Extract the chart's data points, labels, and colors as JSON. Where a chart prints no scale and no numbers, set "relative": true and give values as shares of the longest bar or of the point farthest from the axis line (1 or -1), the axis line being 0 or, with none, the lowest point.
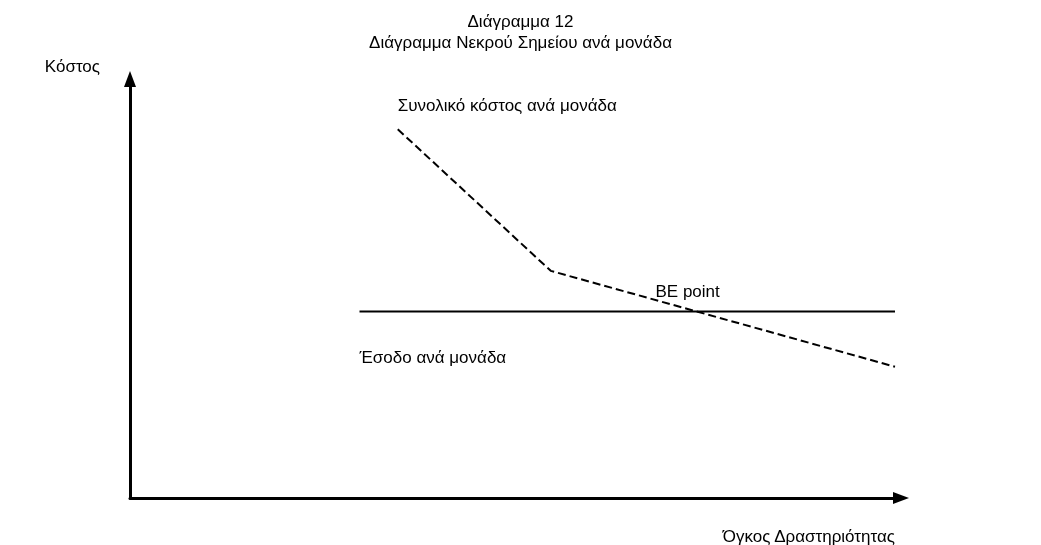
{
  "chart_data": {
    "type": "line",
    "title": "Διάγραμμα 12",
    "subtitle": "Διάγραμμα Νεκρού Σημείου ανά μονάδα",
    "xlabel": "Όγκος Δραστηριότητας",
    "ylabel": "Κόστος",
    "relative": true,
    "categories": [
      null,
      null,
      null,
      null,
      null,
      null,
      null,
      null,
      null,
      null,
      null,
      null,
      null,
      null,
      null,
      null,
      null,
      null,
      null,
      null,
      null
    ],
    "series": [
      {
        "name": "Συνολικό κόστος ανά μονάδα",
        "color": "#000000",
        "line_style": "dashed",
        "values": [
          null,
          null,
          null,
          null,
          null,
          null,
          null,
          1,
          null,
          null,
          null,
          0.616,
          null,
          null,
          null,
          null,
          null,
          null,
          null,
          null,
          0.356
        ]
      },
      {
        "name": "Έσοδο ανά μονάδα",
        "color": "#000000",
        "line_style": "solid",
        "values": [
          null,
          null,
          null,
          null,
          null,
          null,
          0.506,
          null,
          null,
          null,
          null,
          null,
          null,
          null,
          null,
          null,
          null,
          null,
          null,
          null,
          0.506
        ]
      }
    ],
    "annotations": [
      "BE point"
    ],
    "marker": "none",
    "legend": false,
    "grid": false
  }
}
